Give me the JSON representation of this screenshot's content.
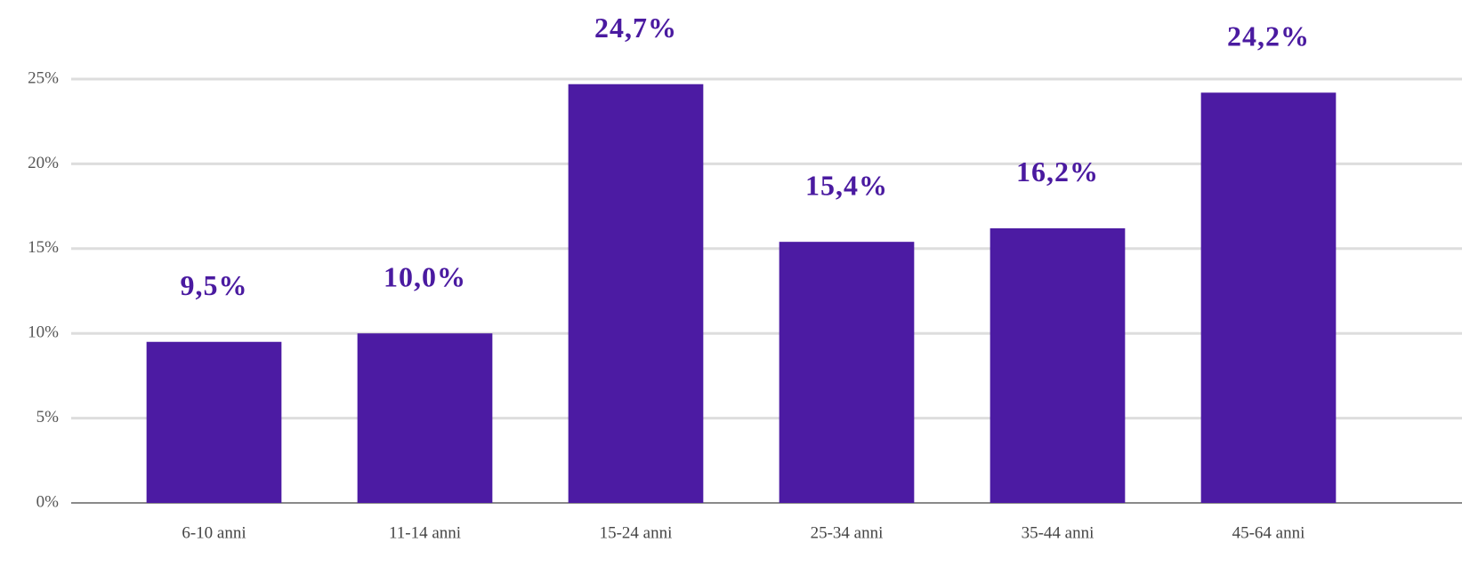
{
  "chart_data": {
    "type": "bar",
    "categories": [
      "6-10 anni",
      "11-14 anni",
      "15-24 anni",
      "25-34 anni",
      "35-44 anni",
      "45-64 anni"
    ],
    "values": [
      9.5,
      10.0,
      24.7,
      15.4,
      16.2,
      24.2
    ],
    "value_labels": [
      "9,5%",
      "10,0%",
      "24,7%",
      "15,4%",
      "16,2%",
      "24,2%"
    ],
    "color": "#4c1ba3",
    "ylim": [
      0,
      25
    ],
    "yticks": [
      {
        "value": 0,
        "label": "0%"
      },
      {
        "value": 5,
        "label": "5%"
      },
      {
        "value": 10,
        "label": "10%"
      },
      {
        "value": 15,
        "label": "15%"
      },
      {
        "value": 20,
        "label": "20%"
      },
      {
        "value": 25,
        "label": "25%"
      }
    ],
    "grid": true
  }
}
